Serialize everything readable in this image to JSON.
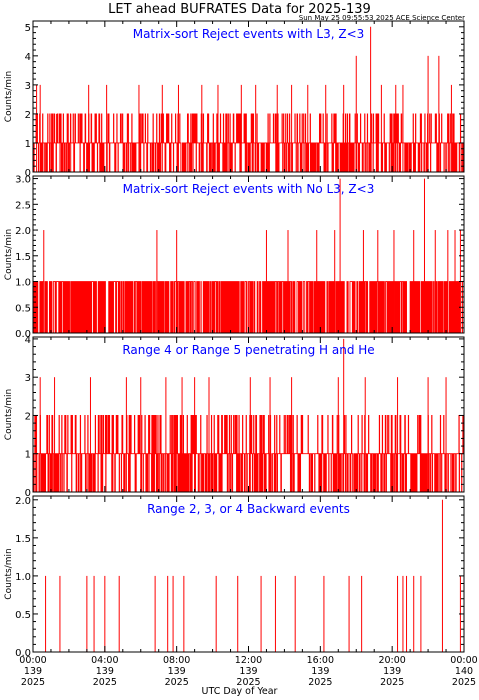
{
  "title": "LET ahead BUFRATES Data for 2025-139",
  "timestamp": "Sun May 25 09:55:53 2025 ACE Science Center",
  "xlabel": "UTC Day of Year",
  "colors": {
    "series": "#ff0000",
    "panel_title": "#0000ff",
    "axes": "#000000"
  },
  "chart_data": [
    {
      "type": "line",
      "title": "Matrix-sort Reject events with L3, Z<3",
      "ylabel": "Counts/min",
      "ylim": [
        0,
        5.2
      ],
      "yticks": [
        0,
        1,
        2,
        3,
        4,
        5
      ],
      "ytick_labels": [
        "0",
        "1",
        "2",
        "3",
        "4",
        "5"
      ],
      "xlim": [
        0,
        24
      ],
      "baseline": 1,
      "max_level": 2,
      "spikes": [
        [
          0.2,
          3
        ],
        [
          0.4,
          3
        ],
        [
          1.3,
          2
        ],
        [
          2.1,
          2
        ],
        [
          3.1,
          3
        ],
        [
          4.1,
          3
        ],
        [
          5.9,
          3
        ],
        [
          7.2,
          3
        ],
        [
          8.1,
          3
        ],
        [
          9.4,
          3
        ],
        [
          10.3,
          3
        ],
        [
          11.6,
          3
        ],
        [
          12.4,
          3
        ],
        [
          13.6,
          3
        ],
        [
          14.4,
          3
        ],
        [
          15.3,
          3
        ],
        [
          16.3,
          3
        ],
        [
          17.3,
          3
        ],
        [
          18.0,
          4
        ],
        [
          18.8,
          5
        ],
        [
          19.4,
          3
        ],
        [
          20.2,
          3
        ],
        [
          20.6,
          3
        ],
        [
          22.0,
          4
        ],
        [
          22.6,
          4
        ],
        [
          23.3,
          3
        ]
      ]
    },
    {
      "type": "line",
      "title": "Matrix-sort Reject events with No L3, Z<3",
      "ylabel": "Counts/min",
      "ylim": [
        0,
        3.05
      ],
      "yticks": [
        0,
        0.5,
        1,
        1.5,
        2,
        2.5,
        3
      ],
      "ytick_labels": [
        "0.0",
        "0.5",
        "1.0",
        "1.5",
        "2.0",
        "2.5",
        "3.0"
      ],
      "xlim": [
        0,
        24
      ],
      "baseline": 0,
      "max_level": 1,
      "spikes": [
        [
          0.6,
          2
        ],
        [
          6.9,
          2
        ],
        [
          8.0,
          2
        ],
        [
          13.0,
          2
        ],
        [
          14.2,
          2
        ],
        [
          15.8,
          2
        ],
        [
          16.8,
          2
        ],
        [
          17.1,
          3
        ],
        [
          18.4,
          2
        ],
        [
          19.2,
          2
        ],
        [
          20.1,
          2
        ],
        [
          21.2,
          2
        ],
        [
          21.8,
          3
        ],
        [
          22.4,
          2
        ],
        [
          23.1,
          2
        ],
        [
          23.5,
          2
        ],
        [
          23.8,
          2
        ]
      ]
    },
    {
      "type": "line",
      "title": "Range 4 or Range 5 penetrating H and He",
      "ylabel": "Counts/min",
      "ylim": [
        0,
        4.05
      ],
      "yticks": [
        0,
        1,
        2,
        3,
        4
      ],
      "ytick_labels": [
        "0",
        "1",
        "2",
        "3",
        "4"
      ],
      "xlim": [
        0,
        24
      ],
      "baseline": 1,
      "max_level": 2,
      "spikes": [
        [
          0.4,
          3
        ],
        [
          1.2,
          3
        ],
        [
          3.2,
          3
        ],
        [
          5.2,
          3
        ],
        [
          6.0,
          3
        ],
        [
          7.4,
          3
        ],
        [
          8.3,
          3
        ],
        [
          9.0,
          3
        ],
        [
          9.8,
          3
        ],
        [
          12.1,
          3
        ],
        [
          13.2,
          3
        ],
        [
          14.4,
          3
        ],
        [
          17.0,
          3
        ],
        [
          17.3,
          4
        ],
        [
          18.5,
          3
        ],
        [
          20.3,
          3
        ],
        [
          22.0,
          3
        ],
        [
          23.0,
          3
        ]
      ]
    },
    {
      "type": "line",
      "title": "Range 2, 3, or 4 Backward events",
      "ylabel": "Counts/min",
      "ylim": [
        0,
        2.05
      ],
      "yticks": [
        0,
        0.5,
        1,
        1.5,
        2
      ],
      "ytick_labels": [
        "0.0",
        "0.5",
        "1.0",
        "1.5",
        "2.0"
      ],
      "xlim": [
        0,
        24
      ],
      "baseline": 0,
      "max_level": 0,
      "spikes": [
        [
          0.7,
          1
        ],
        [
          1.5,
          1
        ],
        [
          3.0,
          1
        ],
        [
          3.4,
          1
        ],
        [
          4.0,
          1
        ],
        [
          4.8,
          1
        ],
        [
          6.8,
          1
        ],
        [
          7.5,
          1
        ],
        [
          7.8,
          1
        ],
        [
          8.4,
          1
        ],
        [
          10.2,
          1
        ],
        [
          11.4,
          1
        ],
        [
          12.7,
          1
        ],
        [
          13.5,
          1
        ],
        [
          14.6,
          1
        ],
        [
          16.2,
          1
        ],
        [
          17.6,
          1
        ],
        [
          18.3,
          1
        ],
        [
          20.3,
          1
        ],
        [
          20.6,
          1
        ],
        [
          20.8,
          1
        ],
        [
          21.2,
          1
        ],
        [
          21.6,
          1
        ],
        [
          22.8,
          2
        ],
        [
          23.8,
          1
        ]
      ]
    }
  ],
  "x_ticks": {
    "positions": [
      0,
      4,
      8,
      12,
      16,
      20,
      24
    ],
    "labels": [
      [
        "00:00",
        "139",
        "2025"
      ],
      [
        "04:00",
        "139",
        "2025"
      ],
      [
        "08:00",
        "139",
        "2025"
      ],
      [
        "12:00",
        "139",
        "2025"
      ],
      [
        "16:00",
        "139",
        "2025"
      ],
      [
        "20:00",
        "139",
        "2025"
      ],
      [
        "00:00",
        "140",
        "2025"
      ]
    ]
  }
}
